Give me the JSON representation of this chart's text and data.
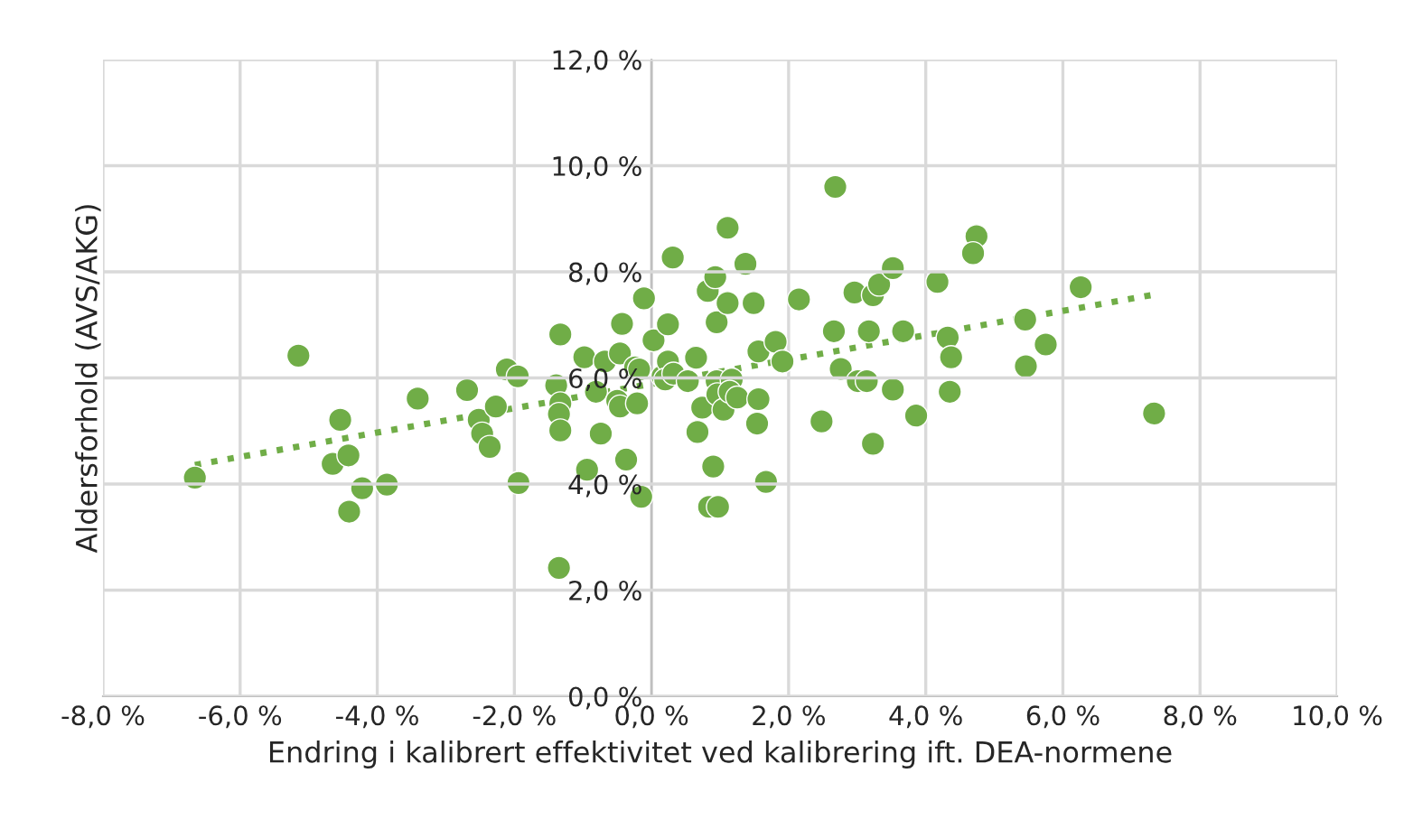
{
  "chart_data": {
    "type": "scatter",
    "xlabel": "Endring i kalibrert effektivitet ved kalibrering ift. DEA-normene",
    "ylabel": "Aldersforhold (AVS/AKG)",
    "xlim": [
      -8,
      10
    ],
    "ylim": [
      0,
      12
    ],
    "xticks": [
      {
        "value": -8,
        "label": "-8,0 %"
      },
      {
        "value": -6,
        "label": "-6,0 %"
      },
      {
        "value": -4,
        "label": "-4,0 %"
      },
      {
        "value": -2,
        "label": "-2,0 %"
      },
      {
        "value": 0,
        "label": "0,0 %"
      },
      {
        "value": 2,
        "label": "2,0 %"
      },
      {
        "value": 4,
        "label": "4,0 %"
      },
      {
        "value": 6,
        "label": "6,0 %"
      },
      {
        "value": 8,
        "label": "8,0 %"
      },
      {
        "value": 10,
        "label": "10,0 %"
      }
    ],
    "yticks": [
      {
        "value": 0,
        "label": "0,0 %"
      },
      {
        "value": 2,
        "label": "2,0 %"
      },
      {
        "value": 4,
        "label": "4,0 %"
      },
      {
        "value": 6,
        "label": "6,0 %"
      },
      {
        "value": 8,
        "label": "8,0 %"
      },
      {
        "value": 10,
        "label": "10,0 %"
      },
      {
        "value": 12,
        "label": "12,0 %"
      }
    ],
    "grid": true,
    "marker": "circle",
    "series": [
      {
        "color": "#70ad47",
        "x": [
          -6.66,
          -5.15,
          -4.54,
          -4.65,
          -4.42,
          -4.22,
          -4.41,
          -3.86,
          -3.41,
          -2.69,
          -2.52,
          -2.47,
          -2.36,
          -2.27,
          -2.11,
          -1.95,
          -1.94,
          -1.33,
          -1.35,
          -1.39,
          -1.33,
          -1.35,
          -1.33,
          -0.98,
          -0.81,
          -0.74,
          -0.68,
          -0.94,
          -0.46,
          -0.43,
          -0.5,
          -0.46,
          -0.37,
          -0.24,
          -0.18,
          -0.21,
          -0.15,
          -0.11,
          0.03,
          0.16,
          0.24,
          0.2,
          0.32,
          0.24,
          0.31,
          0.53,
          0.65,
          0.67,
          0.74,
          0.82,
          0.93,
          0.9,
          0.84,
          0.97,
          0.95,
          0.95,
          0.96,
          1.05,
          1.11,
          1.11,
          1.17,
          1.14,
          1.25,
          1.37,
          1.49,
          1.56,
          1.56,
          1.54,
          1.67,
          1.81,
          1.91,
          2.15,
          2.48,
          2.68,
          2.66,
          2.76,
          2.96,
          3.01,
          3.14,
          3.23,
          3.32,
          3.17,
          3.23,
          3.52,
          3.52,
          3.67,
          3.86,
          4.17,
          4.32,
          4.37,
          4.35,
          4.74,
          4.69,
          6.26,
          5.45,
          5.75,
          5.46,
          7.33
        ],
        "values": [
          4.12,
          6.42,
          5.21,
          4.38,
          4.54,
          3.92,
          3.48,
          3.99,
          5.61,
          5.77,
          5.21,
          4.95,
          4.7,
          5.46,
          6.16,
          6.03,
          4.02,
          6.82,
          2.42,
          5.86,
          5.52,
          5.32,
          5.01,
          6.39,
          5.74,
          4.95,
          6.31,
          4.27,
          6.46,
          7.02,
          5.57,
          5.46,
          4.46,
          6.2,
          6.16,
          5.52,
          3.76,
          7.5,
          6.71,
          6.03,
          6.31,
          5.97,
          6.08,
          7.01,
          8.27,
          5.94,
          6.38,
          4.98,
          5.44,
          7.64,
          7.9,
          4.33,
          3.57,
          3.57,
          7.05,
          5.94,
          5.69,
          5.4,
          7.41,
          8.83,
          5.97,
          5.74,
          5.63,
          8.15,
          7.41,
          6.5,
          5.6,
          5.14,
          4.04,
          6.68,
          6.31,
          7.48,
          5.18,
          9.6,
          6.88,
          6.17,
          7.61,
          5.94,
          5.94,
          7.56,
          7.76,
          6.88,
          4.76,
          8.07,
          5.78,
          6.88,
          5.29,
          7.81,
          6.76,
          6.39,
          5.74,
          8.67,
          8.35,
          7.71,
          7.1,
          6.63,
          6.22,
          5.33
        ]
      },
      {
        "type": "line",
        "color": "#70ad47",
        "line_style": "dotted",
        "marker": "none",
        "x": [
          -6.66,
          7.33
        ],
        "values": [
          4.36,
          7.57
        ]
      }
    ]
  }
}
